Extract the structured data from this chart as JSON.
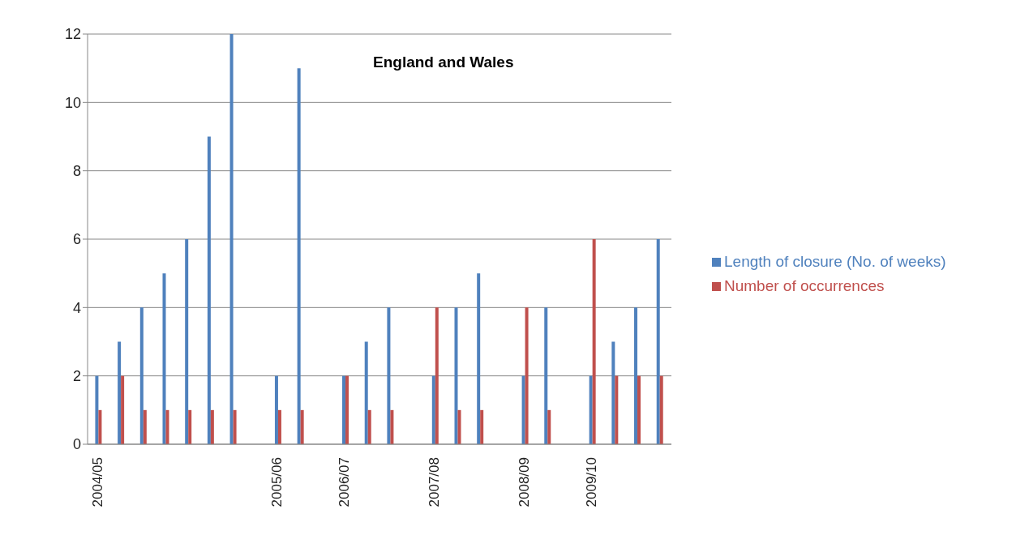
{
  "chart_data": {
    "type": "bar",
    "title": "England and Wales",
    "categories": [
      "2004/05",
      null,
      null,
      null,
      null,
      null,
      null,
      null,
      "2005/06",
      null,
      null,
      "2006/07",
      null,
      null,
      null,
      "2007/08",
      null,
      null,
      null,
      "2008/09",
      null,
      null,
      "2009/10",
      null,
      null,
      null
    ],
    "series": [
      {
        "name": "Length of closure (No. of weeks)",
        "color": "#4f81bd",
        "values": [
          2,
          3,
          4,
          5,
          6,
          9,
          12,
          null,
          2,
          11,
          null,
          2,
          3,
          4,
          null,
          2,
          4,
          5,
          null,
          2,
          4,
          null,
          2,
          3,
          4,
          6
        ]
      },
      {
        "name": "Number of occurrences",
        "color": "#c0504d",
        "values": [
          1,
          2,
          1,
          1,
          1,
          1,
          1,
          null,
          1,
          1,
          null,
          2,
          1,
          1,
          null,
          4,
          1,
          1,
          null,
          4,
          1,
          null,
          6,
          2,
          2,
          2
        ]
      }
    ],
    "ylim": [
      0,
      12
    ],
    "yticks": [
      0,
      2,
      4,
      6,
      8,
      10,
      12
    ],
    "grid": "y",
    "legend": "right"
  }
}
